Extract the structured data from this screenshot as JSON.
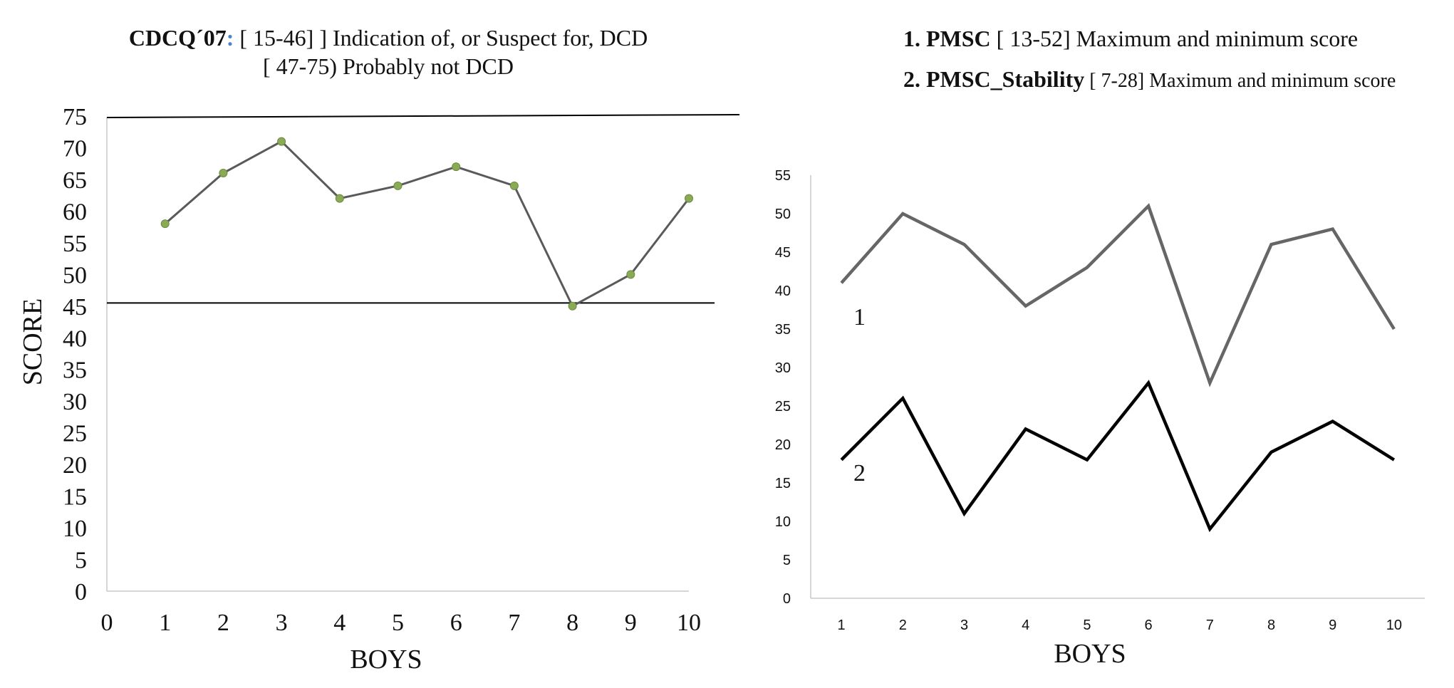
{
  "chart_data": [
    {
      "type": "line",
      "title_lines": [
        {
          "bold": "CDCQ´07",
          "colon": ":",
          "rest": " [ 15-46] ] Indication  of, or Suspect  for,  DCD"
        },
        {
          "bold": "",
          "colon": "",
          "rest": "[ 47-75) Probably  not DCD"
        }
      ],
      "xlabel": "BOYS",
      "ylabel": "SCORE",
      "xlim": [
        0,
        10
      ],
      "ylim": [
        0,
        75
      ],
      "xticks": [
        "0",
        "1",
        "2",
        "3",
        "4",
        "5",
        "6",
        "7",
        "8",
        "9",
        "10"
      ],
      "yticks": [
        "0",
        "5",
        "10",
        "15",
        "20",
        "25",
        "30",
        "35",
        "40",
        "45",
        "50",
        "55",
        "60",
        "65",
        "70",
        "75"
      ],
      "x": [
        1,
        2,
        3,
        4,
        5,
        6,
        7,
        8,
        9,
        10
      ],
      "series": [
        {
          "values": [
            58,
            66,
            71,
            62,
            64,
            67,
            64,
            45,
            50,
            62
          ],
          "color": "#5a5a5a",
          "marker_color": "#8aaa55"
        }
      ],
      "reference_lines": [
        75,
        45.5
      ],
      "grid": false
    },
    {
      "type": "line",
      "title_lines": [
        {
          "bold": "1. PMSC",
          "rest": " [ 13-52] Maximum  and minimum score"
        },
        {
          "bold": "2. PMSC_Stability",
          "rest": "  [ 7-28] Maximum  and minimum  score"
        }
      ],
      "xlabel": "BOYS",
      "ylim": [
        0,
        55
      ],
      "categories": [
        "1",
        "2",
        "3",
        "4",
        "5",
        "6",
        "7",
        "8",
        "9",
        "10"
      ],
      "yticks": [
        "0",
        "5",
        "10",
        "15",
        "20",
        "25",
        "30",
        "35",
        "40",
        "45",
        "50",
        "55"
      ],
      "series": [
        {
          "name": "1",
          "values": [
            41,
            50,
            46,
            38,
            43,
            51,
            28,
            46,
            48,
            35
          ],
          "color": "#666666"
        },
        {
          "name": "2",
          "values": [
            18,
            26,
            11,
            22,
            18,
            28,
            9,
            19,
            23,
            18
          ],
          "color": "#000000"
        }
      ],
      "grid": false
    }
  ]
}
